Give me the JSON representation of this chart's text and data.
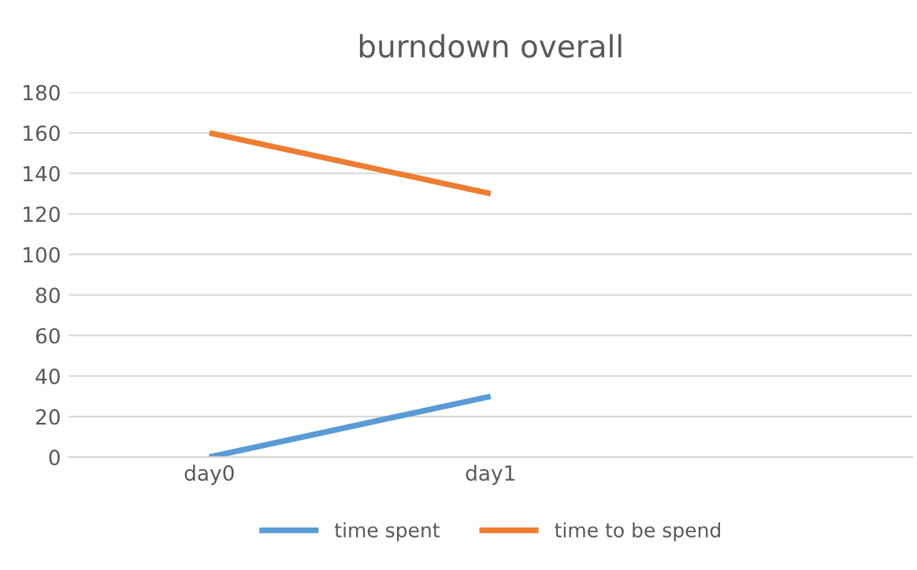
{
  "chart_data": {
    "type": "line",
    "title": "burndown overall",
    "categories": [
      "day0",
      "day1",
      null
    ],
    "series": [
      {
        "name": "time spent",
        "color": "#5b9bd5",
        "values": [
          0,
          30,
          null
        ]
      },
      {
        "name": "time to be spend",
        "color": "#ed7d31",
        "values": [
          160,
          130,
          null
        ]
      }
    ],
    "ylim": [
      0,
      180
    ],
    "yticks": [
      0,
      20,
      40,
      60,
      80,
      100,
      120,
      140,
      160,
      180
    ],
    "grid": "y",
    "legend": "bottom",
    "marker": "none",
    "line_style": "solid"
  }
}
